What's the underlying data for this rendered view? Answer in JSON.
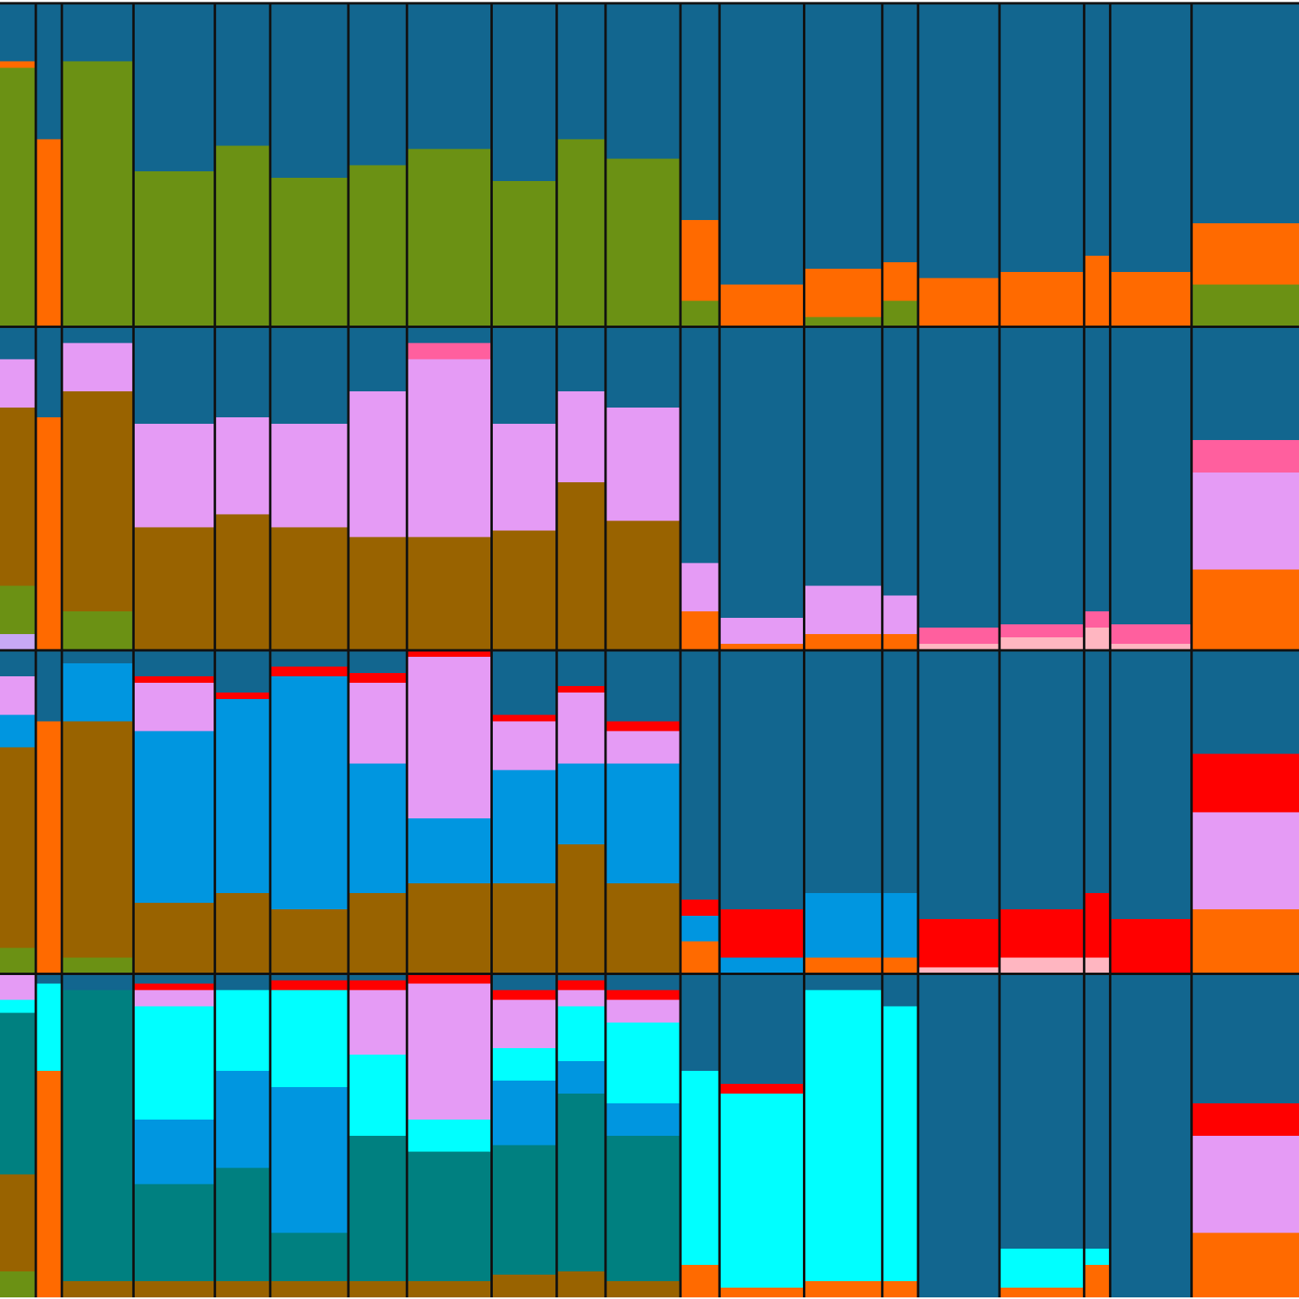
{
  "chart_data": [
    {
      "type": "bar",
      "stacked": true,
      "ylim": [
        0,
        1
      ],
      "categories": [
        null,
        null,
        null,
        null,
        null,
        null,
        null,
        null,
        null,
        null,
        null,
        null,
        null,
        null,
        null,
        null,
        null,
        null,
        null,
        null
      ],
      "sample_sizes": [
        11,
        8,
        22,
        25,
        17,
        24,
        18,
        26,
        20,
        15,
        23,
        12,
        26,
        24,
        11,
        25,
        26,
        8,
        25,
        33
      ],
      "series": [
        {
          "color": "#6b9114",
          "values": [
            0.8,
            0,
            0.82,
            0.48,
            0.56,
            0.46,
            0.5,
            0.55,
            0.45,
            0.58,
            0.52,
            0.08,
            0,
            0.03,
            0.08,
            0,
            0,
            0,
            0,
            0.13
          ]
        },
        {
          "color": "#ff6a00",
          "values": [
            0.02,
            0.58,
            0,
            0,
            0,
            0,
            0,
            0,
            0,
            0,
            0,
            0.25,
            0.13,
            0.15,
            0.12,
            0.15,
            0.17,
            0.22,
            0.17,
            0.19
          ]
        },
        {
          "color": "#12668f",
          "values": [
            0.18,
            0.42,
            0.18,
            0.52,
            0.44,
            0.54,
            0.5,
            0.45,
            0.55,
            0.42,
            0.48,
            0.67,
            0.87,
            0.82,
            0.8,
            0.85,
            0.83,
            0.78,
            0.83,
            0.68
          ]
        }
      ]
    },
    {
      "type": "bar",
      "stacked": true,
      "ylim": [
        0,
        1
      ],
      "categories": [
        null,
        null,
        null,
        null,
        null,
        null,
        null,
        null,
        null,
        null,
        null,
        null,
        null,
        null,
        null,
        null,
        null,
        null,
        null,
        null
      ],
      "sample_sizes": [
        11,
        8,
        22,
        25,
        17,
        24,
        18,
        26,
        20,
        15,
        23,
        12,
        26,
        24,
        11,
        25,
        26,
        8,
        25,
        33
      ],
      "series": [
        {
          "color": "#c7a8f5",
          "values": [
            0.05,
            0,
            0,
            0,
            0,
            0,
            0,
            0,
            0,
            0,
            0,
            0,
            0,
            0,
            0,
            0,
            0,
            0,
            0,
            0
          ]
        },
        {
          "color": "#6b9114",
          "values": [
            0.15,
            0,
            0.12,
            0,
            0,
            0,
            0,
            0,
            0,
            0,
            0,
            0,
            0,
            0,
            0,
            0,
            0,
            0,
            0,
            0
          ]
        },
        {
          "color": "#ff6a00",
          "values": [
            0,
            0.72,
            0,
            0,
            0,
            0,
            0,
            0,
            0,
            0,
            0,
            0.12,
            0.02,
            0.05,
            0.05,
            0,
            0,
            0,
            0,
            0.25
          ]
        },
        {
          "color": "#996300",
          "values": [
            0.55,
            0,
            0.68,
            0.38,
            0.42,
            0.38,
            0.35,
            0.35,
            0.37,
            0.52,
            0.4,
            0,
            0,
            0,
            0,
            0,
            0,
            0,
            0,
            0
          ]
        },
        {
          "color": "#ffb6c1",
          "values": [
            0,
            0,
            0,
            0,
            0,
            0,
            0,
            0,
            0,
            0,
            0,
            0,
            0,
            0,
            0,
            0.02,
            0.04,
            0.07,
            0.02,
            0
          ]
        },
        {
          "color": "#e59bf5",
          "values": [
            0.15,
            0,
            0.15,
            0.32,
            0.3,
            0.32,
            0.45,
            0.55,
            0.33,
            0.28,
            0.35,
            0.15,
            0.08,
            0.15,
            0.12,
            0,
            0,
            0,
            0,
            0.3
          ]
        },
        {
          "color": "#ff5f9e",
          "values": [
            0,
            0,
            0,
            0,
            0,
            0,
            0,
            0.05,
            0,
            0,
            0,
            0,
            0,
            0,
            0,
            0.05,
            0.04,
            0.05,
            0.06,
            0.1
          ]
        },
        {
          "color": "#12668f",
          "values": [
            0.1,
            0.28,
            0.05,
            0.3,
            0.28,
            0.3,
            0.2,
            0.05,
            0.3,
            0.2,
            0.25,
            0.73,
            0.9,
            0.8,
            0.83,
            0.93,
            0.92,
            0.88,
            0.92,
            0.35
          ]
        }
      ]
    },
    {
      "type": "bar",
      "stacked": true,
      "ylim": [
        0,
        1
      ],
      "categories": [
        null,
        null,
        null,
        null,
        null,
        null,
        null,
        null,
        null,
        null,
        null,
        null,
        null,
        null,
        null,
        null,
        null,
        null,
        null,
        null
      ],
      "sample_sizes": [
        11,
        8,
        22,
        25,
        17,
        24,
        18,
        26,
        20,
        15,
        23,
        12,
        26,
        24,
        11,
        25,
        26,
        8,
        25,
        33
      ],
      "series": [
        {
          "color": "#6b9114",
          "values": [
            0.08,
            0,
            0.05,
            0,
            0,
            0,
            0,
            0,
            0,
            0,
            0,
            0,
            0,
            0,
            0,
            0,
            0,
            0,
            0,
            0
          ]
        },
        {
          "color": "#ff6a00",
          "values": [
            0,
            0.78,
            0,
            0,
            0,
            0,
            0,
            0,
            0,
            0,
            0,
            0.1,
            0,
            0.05,
            0.05,
            0,
            0,
            0,
            0,
            0.2
          ]
        },
        {
          "color": "#996300",
          "values": [
            0.62,
            0,
            0.73,
            0.22,
            0.25,
            0.2,
            0.25,
            0.28,
            0.28,
            0.4,
            0.28,
            0,
            0,
            0,
            0,
            0,
            0,
            0,
            0,
            0
          ]
        },
        {
          "color": "#ffb6c1",
          "values": [
            0,
            0,
            0,
            0,
            0,
            0,
            0,
            0,
            0,
            0,
            0,
            0,
            0,
            0,
            0,
            0.02,
            0.05,
            0.05,
            0,
            0
          ]
        },
        {
          "color": "#0096e0",
          "values": [
            0.1,
            0,
            0.18,
            0.53,
            0.6,
            0.72,
            0.4,
            0.2,
            0.35,
            0.25,
            0.37,
            0.08,
            0.05,
            0.2,
            0.2,
            0,
            0,
            0,
            0,
            0
          ]
        },
        {
          "color": "#e59bf5",
          "values": [
            0.12,
            0,
            0,
            0.15,
            0,
            0,
            0.25,
            0.5,
            0.15,
            0.22,
            0.1,
            0,
            0,
            0,
            0,
            0,
            0,
            0,
            0,
            0.3
          ]
        },
        {
          "color": "#ff0000",
          "values": [
            0,
            0,
            0,
            0.02,
            0.02,
            0.03,
            0.03,
            0.02,
            0.02,
            0.02,
            0.03,
            0.05,
            0.15,
            0,
            0,
            0.15,
            0.15,
            0.2,
            0.17,
            0.18
          ]
        },
        {
          "color": "#12668f",
          "values": [
            0.08,
            0.22,
            0.04,
            0.08,
            0.13,
            0.05,
            0.07,
            0,
            0.2,
            0.11,
            0.22,
            0.77,
            0.8,
            0.75,
            0.75,
            0.83,
            0.8,
            0.75,
            0.83,
            0.32
          ]
        }
      ]
    },
    {
      "type": "bar",
      "stacked": true,
      "ylim": [
        0,
        1
      ],
      "categories": [
        null,
        null,
        null,
        null,
        null,
        null,
        null,
        null,
        null,
        null,
        null,
        null,
        null,
        null,
        null,
        null,
        null,
        null,
        null,
        null
      ],
      "sample_sizes": [
        11,
        8,
        22,
        25,
        17,
        24,
        18,
        26,
        20,
        15,
        23,
        12,
        26,
        24,
        11,
        25,
        26,
        8,
        25,
        33
      ],
      "series": [
        {
          "color": "#6b9114",
          "values": [
            0.08,
            0,
            0,
            0,
            0,
            0,
            0,
            0,
            0,
            0,
            0,
            0,
            0,
            0,
            0,
            0,
            0,
            0,
            0,
            0
          ]
        },
        {
          "color": "#ff6a00",
          "values": [
            0,
            0.7,
            0,
            0,
            0,
            0,
            0,
            0,
            0,
            0,
            0,
            0.1,
            0.03,
            0.05,
            0.05,
            0,
            0.03,
            0.1,
            0,
            0.2
          ]
        },
        {
          "color": "#996300",
          "values": [
            0.3,
            0,
            0.05,
            0.05,
            0.05,
            0.05,
            0.05,
            0.05,
            0.07,
            0.08,
            0.05,
            0,
            0,
            0,
            0,
            0,
            0,
            0,
            0,
            0
          ]
        },
        {
          "color": "#008080",
          "values": [
            0.5,
            0,
            0.9,
            0.3,
            0.35,
            0.15,
            0.45,
            0.4,
            0.4,
            0.55,
            0.45,
            0,
            0,
            0,
            0,
            0,
            0,
            0,
            0,
            0
          ]
        },
        {
          "color": "#0096e0",
          "values": [
            0,
            0,
            0,
            0.2,
            0.3,
            0.45,
            0,
            0,
            0.2,
            0.1,
            0.1,
            0,
            0,
            0,
            0,
            0,
            0,
            0,
            0,
            0
          ]
        },
        {
          "color": "#00ffff",
          "values": [
            0.04,
            0.27,
            0,
            0.35,
            0.25,
            0.3,
            0.25,
            0.1,
            0.1,
            0.17,
            0.25,
            0.6,
            0.6,
            0.9,
            0.85,
            0,
            0.12,
            0.05,
            0,
            0
          ]
        },
        {
          "color": "#e59bf5",
          "values": [
            0.08,
            0,
            0,
            0.05,
            0,
            0,
            0.2,
            0.42,
            0.15,
            0.05,
            0.07,
            0,
            0,
            0,
            0,
            0,
            0,
            0,
            0,
            0.3
          ]
        },
        {
          "color": "#ff0000",
          "values": [
            0,
            0,
            0,
            0.02,
            0,
            0.03,
            0.03,
            0.03,
            0.03,
            0.03,
            0.03,
            0,
            0.03,
            0,
            0,
            0,
            0,
            0,
            0,
            0.1
          ]
        },
        {
          "color": "#12668f",
          "values": [
            0,
            0.03,
            0.05,
            0.03,
            0.05,
            0.02,
            0.02,
            0,
            0.05,
            0.02,
            0.05,
            0.3,
            0.34,
            0.05,
            0.1,
            1,
            0.85,
            0.85,
            1,
            0.4
          ]
        }
      ]
    }
  ]
}
